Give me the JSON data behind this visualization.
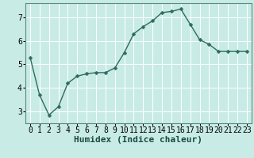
{
  "x": [
    0,
    1,
    2,
    3,
    4,
    5,
    6,
    7,
    8,
    9,
    10,
    11,
    12,
    13,
    14,
    15,
    16,
    17,
    18,
    19,
    20,
    21,
    22,
    23
  ],
  "y": [
    5.3,
    3.7,
    2.85,
    3.2,
    4.2,
    4.5,
    4.6,
    4.65,
    4.65,
    4.85,
    5.5,
    6.3,
    6.6,
    6.85,
    7.2,
    7.25,
    7.35,
    6.7,
    6.05,
    5.85,
    5.55,
    5.55,
    5.55,
    5.55
  ],
  "bg_color": "#c8ebe6",
  "line_color": "#2e6b60",
  "marker_color": "#2e6b60",
  "grid_color": "#ffffff",
  "xlabel": "Humidex (Indice chaleur)",
  "xlim": [
    -0.5,
    23.5
  ],
  "ylim": [
    2.5,
    7.6
  ],
  "yticks": [
    3,
    4,
    5,
    6,
    7
  ],
  "xticks": [
    0,
    1,
    2,
    3,
    4,
    5,
    6,
    7,
    8,
    9,
    10,
    11,
    12,
    13,
    14,
    15,
    16,
    17,
    18,
    19,
    20,
    21,
    22,
    23
  ],
  "xtick_labels": [
    "0",
    "1",
    "2",
    "3",
    "4",
    "5",
    "6",
    "7",
    "8",
    "9",
    "10",
    "11",
    "12",
    "13",
    "14",
    "15",
    "16",
    "17",
    "18",
    "19",
    "20",
    "21",
    "22",
    "23"
  ],
  "tick_fontsize": 7,
  "xlabel_fontsize": 8,
  "line_width": 1.0,
  "marker_size": 2.5
}
